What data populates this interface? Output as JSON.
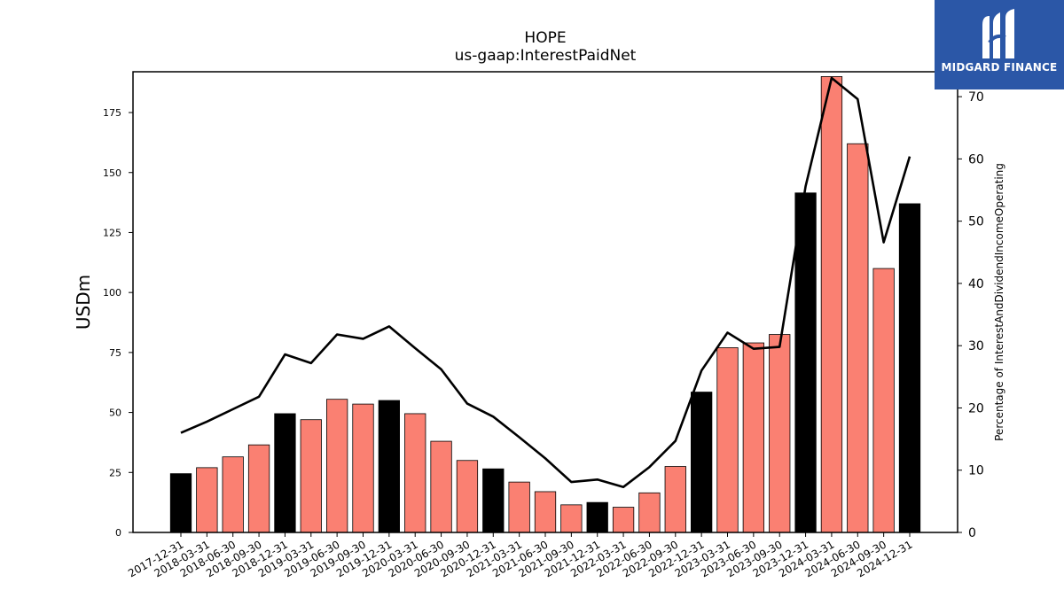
{
  "chart_data": {
    "type": "bar",
    "title": "HOPE",
    "subtitle": "us-gaap:InterestPaidNet",
    "ylabel": "USDm",
    "y2label": "Percentage of InterestAndDividendIncomeOperating",
    "ylim": [
      0,
      192
    ],
    "y2lim": [
      0,
      74
    ],
    "yticks": [
      0,
      25,
      50,
      75,
      100,
      125,
      150,
      175
    ],
    "y2ticks": [
      0,
      10,
      20,
      30,
      40,
      50,
      60,
      70
    ],
    "categories": [
      "2017-12-31",
      "2018-03-31",
      "2018-06-30",
      "2018-09-30",
      "2018-12-31",
      "2019-03-31",
      "2019-06-30",
      "2019-09-30",
      "2019-12-31",
      "2020-03-31",
      "2020-06-30",
      "2020-09-30",
      "2020-12-31",
      "2021-03-31",
      "2021-06-30",
      "2021-09-30",
      "2021-12-31",
      "2022-03-31",
      "2022-06-30",
      "2022-09-30",
      "2022-12-31",
      "2023-03-31",
      "2023-06-30",
      "2023-09-30",
      "2023-12-31",
      "2024-03-31",
      "2024-06-30",
      "2024-09-30",
      "2024-12-31"
    ],
    "series": [
      {
        "values": [
          24.5,
          27,
          31.5,
          36.5,
          49.5,
          47,
          55.5,
          53.5,
          55,
          49.5,
          38,
          30,
          26.5,
          21,
          17,
          11.5,
          12.5,
          10.5,
          16.5,
          27.5,
          58.5,
          77,
          79,
          82.5,
          141.5,
          190,
          162,
          110,
          137
        ]
      },
      {
        "type": "line",
        "axis": "right",
        "values": [
          16,
          17.8,
          19.8,
          21.8,
          28.6,
          27.2,
          31.8,
          31.1,
          33.1,
          29.6,
          26.2,
          20.7,
          18.6,
          15.3,
          11.9,
          8.1,
          8.5,
          7.3,
          10.5,
          14.7,
          26.0,
          32.1,
          29.5,
          29.8,
          55.6,
          73.0,
          69.6,
          46.6,
          60.4
        ]
      }
    ],
    "colors": {
      "annual_bar": "#000000",
      "quarter_bar": "#fa8072",
      "line": "#000000"
    },
    "annual_categories": [
      "2017-12-31",
      "2018-12-31",
      "2019-12-31",
      "2020-12-31",
      "2021-12-31",
      "2022-12-31",
      "2023-12-31",
      "2024-12-31"
    ],
    "grid": false,
    "legend": "none"
  },
  "logo": {
    "text": "MIDGARD FINANCE",
    "background": "#2b57a7"
  }
}
